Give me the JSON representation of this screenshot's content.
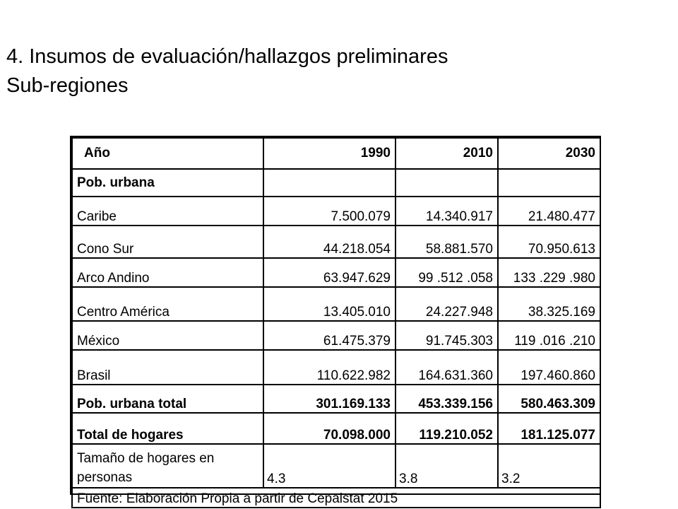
{
  "heading": {
    "line1": "4. Insumos de evaluación/hallazgos preliminares",
    "line2": "Sub-regiones"
  },
  "table": {
    "header": [
      "Año",
      "1990",
      "2010",
      "2030"
    ],
    "section_label": "Pob. urbana",
    "rows": [
      {
        "label": "Caribe",
        "v1990": "7.500.079",
        "v2010": "14.340.917",
        "v2030": "21.480.477"
      },
      {
        "label": "Cono Sur",
        "v1990": "44.218.054",
        "v2010": "58.881.570",
        "v2030": "70.950.613"
      },
      {
        "label": "Arco Andino",
        "v1990": "63.947.629",
        "v2010": "99 .512 .058",
        "v2030": "133 .229 .980"
      },
      {
        "label": "Centro América",
        "v1990": "13.405.010",
        "v2010": "24.227.948",
        "v2030": "38.325.169"
      },
      {
        "label": "México",
        "v1990": "61.475.379",
        "v2010": "91.745.303",
        "v2030": "119 .016 .210"
      },
      {
        "label": "Brasil",
        "v1990": "110.622.982",
        "v2010": "164.631.360",
        "v2030": "197.460.860"
      }
    ],
    "total_urban": {
      "label": "Pob. urbana total",
      "v1990": "301.169.133",
      "v2010": "453.339.156",
      "v2030": "580.463.309"
    },
    "total_households": {
      "label": "Total de hogares",
      "v1990": "70.098.000",
      "v2010": "119.210.052",
      "v2030": "181.125.077"
    },
    "household_size": {
      "label": "Tamaño de hogares en personas",
      "v1990": "4.3",
      "v2010": "3.8",
      "v2030": "3.2"
    },
    "source": "Fuente: Elaboración Propia a partir de Cepalstat 2015"
  }
}
